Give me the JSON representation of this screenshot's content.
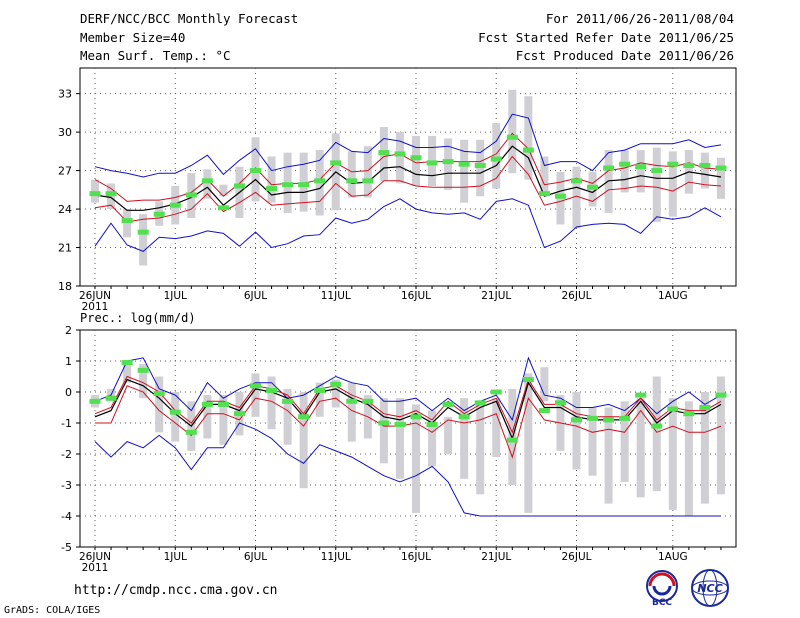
{
  "header": {
    "title": "DERF/NCC/BCC Monthly Forecast",
    "member_size": "Member Size=40",
    "variable_top": "Mean Surf. Temp.: °C",
    "period": "For 2011/06/26-2011/08/04",
    "refer_date": "Fcst Started Refer Date 2011/06/25",
    "produced_date": "Fcst Produced Date 2011/06/26"
  },
  "footer": {
    "url": "http://cmdp.ncc.cma.gov.cn",
    "credit": "GrADS: COLA/IGES",
    "logo_left_text": "BCC",
    "logo_right_text": "NCC"
  },
  "colors": {
    "envelope": "#1010c8",
    "spread": "#d01020",
    "mean": "#000000",
    "range_bar": "#d0d0d4",
    "member_mark": "#50e050",
    "grid": "#606060"
  },
  "chart_data": [
    {
      "type": "line",
      "title": "",
      "ylabel": "Mean Surf. Temp.: °C",
      "ylim": [
        18,
        35
      ],
      "yticks": [
        18,
        21,
        24,
        27,
        30,
        33
      ],
      "x_tick_labels": [
        "26JUN",
        "1JUL",
        "6JUL",
        "11JUL",
        "16JUL",
        "21JUL",
        "26JUL",
        "1AUG"
      ],
      "x_tick_day_index": [
        0,
        5,
        10,
        15,
        20,
        25,
        30,
        36
      ],
      "x_sub_label": "2011",
      "days": 40,
      "bar_low": [
        24.5,
        24.0,
        21.8,
        19.6,
        22.7,
        22.8,
        23.3,
        24.8,
        25.0,
        23.3,
        24.6,
        24.5,
        23.7,
        23.8,
        23.5,
        23.9,
        24.9,
        24.9,
        26.2,
        26.0,
        25.8,
        25.8,
        25.5,
        24.5,
        25.0,
        25.6,
        26.8,
        26.3,
        25.3,
        22.8,
        22.5,
        24.2,
        23.7,
        25.3,
        25.3,
        23.0,
        23.4,
        25.2,
        25.6,
        24.8
      ],
      "bar_high": [
        26.3,
        26.0,
        24.0,
        23.6,
        24.6,
        25.8,
        26.8,
        27.1,
        25.9,
        27.3,
        29.6,
        28.1,
        28.4,
        28.4,
        28.6,
        29.9,
        28.5,
        28.9,
        30.4,
        30.0,
        29.7,
        29.7,
        29.5,
        29.4,
        29.4,
        30.7,
        33.3,
        32.8,
        28.1,
        26.9,
        27.3,
        26.9,
        28.6,
        28.6,
        28.6,
        28.8,
        28.5,
        28.6,
        28.4,
        28.0
      ],
      "member_marks": [
        25.2,
        25.2,
        23.1,
        22.2,
        23.6,
        24.3,
        25.1,
        26.2,
        24.1,
        25.8,
        27.0,
        25.6,
        25.9,
        25.9,
        26.2,
        27.6,
        26.2,
        26.2,
        28.4,
        28.3,
        28.0,
        27.6,
        27.7,
        27.5,
        27.4,
        27.9,
        29.6,
        28.6,
        25.2,
        25.0,
        26.2,
        25.7,
        27.2,
        27.5,
        27.3,
        27.0,
        27.5,
        27.4,
        27.4,
        27.2
      ],
      "series": [
        {
          "name": "max",
          "color_key": "envelope",
          "values": [
            27.3,
            27.0,
            26.8,
            26.5,
            26.8,
            26.8,
            27.4,
            28.2,
            26.7,
            27.8,
            28.7,
            27.0,
            27.3,
            27.5,
            27.8,
            29.2,
            28.5,
            28.4,
            29.5,
            29.3,
            28.8,
            28.8,
            28.9,
            28.5,
            28.4,
            29.3,
            31.4,
            31.1,
            27.4,
            27.7,
            27.7,
            27.0,
            28.4,
            28.6,
            29.1,
            29.1,
            29.1,
            29.4,
            28.8,
            29.0
          ]
        },
        {
          "name": "upper",
          "color_key": "spread",
          "values": [
            26.3,
            25.6,
            24.6,
            24.7,
            24.7,
            24.9,
            25.3,
            26.3,
            25.0,
            26.0,
            27.2,
            25.9,
            26.0,
            26.0,
            26.3,
            27.6,
            26.9,
            27.0,
            28.1,
            28.3,
            27.6,
            27.7,
            27.7,
            27.7,
            27.7,
            28.3,
            29.9,
            28.7,
            25.9,
            26.1,
            26.4,
            26.0,
            27.0,
            27.2,
            27.6,
            27.4,
            27.3,
            27.6,
            27.2,
            27.1
          ]
        },
        {
          "name": "mean",
          "color_key": "mean",
          "values": [
            25.1,
            24.9,
            23.9,
            23.9,
            24.1,
            24.4,
            24.9,
            25.7,
            24.3,
            25.3,
            26.3,
            25.1,
            25.3,
            25.3,
            25.6,
            26.9,
            26.0,
            26.1,
            27.2,
            27.3,
            26.7,
            26.6,
            26.8,
            26.8,
            26.8,
            27.4,
            28.9,
            28.0,
            25.0,
            25.4,
            25.7,
            25.3,
            26.2,
            26.3,
            26.6,
            26.4,
            26.4,
            26.9,
            26.7,
            26.5
          ]
        },
        {
          "name": "lower",
          "color_key": "spread",
          "values": [
            24.1,
            24.3,
            23.0,
            23.2,
            23.3,
            23.6,
            24.0,
            25.2,
            23.8,
            24.5,
            25.3,
            24.3,
            24.4,
            24.5,
            24.6,
            26.0,
            25.0,
            25.1,
            26.2,
            26.2,
            25.8,
            25.7,
            25.7,
            25.7,
            25.8,
            26.4,
            28.1,
            26.7,
            24.3,
            24.6,
            25.0,
            24.6,
            25.5,
            25.6,
            25.8,
            25.7,
            25.4,
            26.1,
            25.9,
            25.8
          ]
        },
        {
          "name": "min",
          "color_key": "envelope",
          "values": [
            21.1,
            22.9,
            21.2,
            20.7,
            21.8,
            21.7,
            21.9,
            22.3,
            22.1,
            21.1,
            22.2,
            21.0,
            21.3,
            21.9,
            22.0,
            23.3,
            22.9,
            23.2,
            24.2,
            24.8,
            24.0,
            23.7,
            23.6,
            23.7,
            23.2,
            24.6,
            24.8,
            24.3,
            21.0,
            21.5,
            22.6,
            22.8,
            22.9,
            22.8,
            22.1,
            23.4,
            23.2,
            23.4,
            24.1,
            23.4
          ]
        }
      ]
    },
    {
      "type": "line",
      "title": "",
      "ylabel": "Prec.: log(mm/d)",
      "ylim": [
        -5,
        2
      ],
      "yticks": [
        -5,
        -4,
        -3,
        -2,
        -1,
        0,
        1,
        2
      ],
      "x_tick_labels": [
        "26JUN",
        "1JUL",
        "6JUL",
        "11JUL",
        "16JUL",
        "21JUL",
        "26JUL",
        "1AUG"
      ],
      "x_tick_day_index": [
        0,
        5,
        10,
        15,
        20,
        25,
        30,
        36
      ],
      "x_sub_label": "2011",
      "days": 40,
      "bar_low": [
        -0.5,
        -0.3,
        0.3,
        -0.2,
        -1.3,
        -1.6,
        -1.9,
        -1.5,
        -1.7,
        -1.4,
        -0.8,
        -1.2,
        -1.7,
        -3.1,
        -0.8,
        -0.5,
        -1.6,
        -1.5,
        -2.3,
        -2.8,
        -3.9,
        -2.4,
        -2.0,
        -2.8,
        -3.3,
        -2.1,
        -3.0,
        -3.9,
        -0.3,
        -1.9,
        -2.5,
        -2.7,
        -3.6,
        -2.9,
        -3.4,
        -3.2,
        -3.8,
        -4.0,
        -3.6,
        -3.3
      ],
      "bar_high": [
        -0.1,
        0.1,
        1.0,
        0.9,
        0.5,
        0.0,
        -0.3,
        -0.1,
        -0.1,
        0.0,
        0.6,
        0.5,
        0.1,
        0.0,
        0.3,
        0.4,
        0.3,
        -0.1,
        -0.2,
        -0.2,
        -0.4,
        -0.6,
        -0.8,
        -0.2,
        -0.4,
        -0.2,
        0.1,
        0.6,
        0.8,
        -0.1,
        0.0,
        -0.5,
        -0.5,
        -0.3,
        -0.2,
        0.5,
        -0.2,
        -0.3,
        0.0,
        0.5
      ],
      "member_marks": [
        -0.3,
        -0.2,
        0.95,
        0.7,
        -0.05,
        -0.65,
        -1.3,
        -0.4,
        -0.4,
        -0.7,
        0.2,
        0.05,
        -0.3,
        -0.8,
        0.05,
        0.25,
        -0.3,
        -0.3,
        -1.0,
        -1.05,
        -0.8,
        -1.05,
        -0.4,
        -0.8,
        -0.35,
        0.0,
        -1.55,
        0.4,
        -0.6,
        -0.35,
        -0.9,
        -0.85,
        -0.9,
        -0.85,
        -0.1,
        -1.1,
        -0.55,
        -0.7,
        -0.5,
        -0.1
      ],
      "series": [
        {
          "name": "max",
          "color_key": "envelope",
          "values": [
            -0.3,
            -0.1,
            1.0,
            1.1,
            0.1,
            -0.1,
            -0.6,
            0.3,
            -0.2,
            0.1,
            0.3,
            0.3,
            -0.2,
            -0.1,
            0.2,
            0.5,
            0.3,
            0.2,
            -0.3,
            -0.3,
            -0.2,
            -0.6,
            -0.2,
            -0.6,
            -0.3,
            -0.1,
            -0.9,
            1.1,
            -0.1,
            -0.2,
            -0.5,
            -0.5,
            -0.4,
            -0.6,
            -0.2,
            -0.7,
            -0.3,
            0.0,
            -0.4,
            -0.1
          ]
        },
        {
          "name": "upper",
          "color_key": "spread",
          "values": [
            -0.7,
            -0.5,
            0.5,
            0.3,
            0.0,
            -0.6,
            -1.0,
            -0.3,
            -0.3,
            -0.5,
            0.2,
            0.1,
            -0.1,
            -0.7,
            0.1,
            0.2,
            -0.1,
            -0.3,
            -0.7,
            -0.8,
            -0.6,
            -0.9,
            -0.3,
            -0.7,
            -0.4,
            -0.2,
            -1.3,
            0.4,
            -0.4,
            -0.4,
            -0.7,
            -0.8,
            -0.8,
            -0.8,
            -0.2,
            -0.9,
            -0.5,
            -0.6,
            -0.6,
            -0.3
          ]
        },
        {
          "name": "mean",
          "color_key": "mean",
          "values": [
            -0.8,
            -0.6,
            0.4,
            0.2,
            -0.2,
            -0.7,
            -1.1,
            -0.4,
            -0.4,
            -0.6,
            0.1,
            0.0,
            -0.2,
            -0.8,
            0.0,
            0.1,
            -0.2,
            -0.4,
            -0.8,
            -0.9,
            -0.7,
            -1.0,
            -0.5,
            -0.8,
            -0.5,
            -0.3,
            -1.5,
            0.3,
            -0.5,
            -0.5,
            -0.8,
            -0.9,
            -0.9,
            -0.9,
            -0.3,
            -1.0,
            -0.6,
            -0.7,
            -0.7,
            -0.4
          ]
        },
        {
          "name": "lower",
          "color_key": "spread",
          "values": [
            -1.0,
            -1.0,
            0.2,
            0.0,
            -0.6,
            -1.0,
            -1.4,
            -0.7,
            -0.7,
            -0.9,
            -0.2,
            -0.3,
            -0.6,
            -1.1,
            -0.3,
            -0.2,
            -0.6,
            -0.8,
            -1.1,
            -1.1,
            -1.0,
            -1.3,
            -0.9,
            -1.0,
            -0.9,
            -0.7,
            -2.1,
            -0.2,
            -0.9,
            -1.0,
            -1.1,
            -1.3,
            -1.2,
            -1.3,
            -0.6,
            -1.3,
            -1.1,
            -1.3,
            -1.3,
            -1.1
          ]
        },
        {
          "name": "min",
          "color_key": "envelope",
          "values": [
            -1.6,
            -2.1,
            -1.6,
            -1.8,
            -1.4,
            -1.8,
            -2.5,
            -1.8,
            -1.8,
            -1.0,
            -1.2,
            -1.5,
            -2.0,
            -2.3,
            -1.7,
            -1.9,
            -2.1,
            -2.4,
            -2.7,
            -2.9,
            -2.7,
            -2.4,
            -2.9,
            -3.9,
            -4.0,
            -4.0,
            -4.0,
            -4.0,
            -4.0,
            -4.0,
            -4.0,
            -4.0,
            -4.0,
            -4.0,
            -4.0,
            -4.0,
            -4.0,
            -4.0,
            -4.0,
            -4.0
          ]
        }
      ]
    }
  ]
}
